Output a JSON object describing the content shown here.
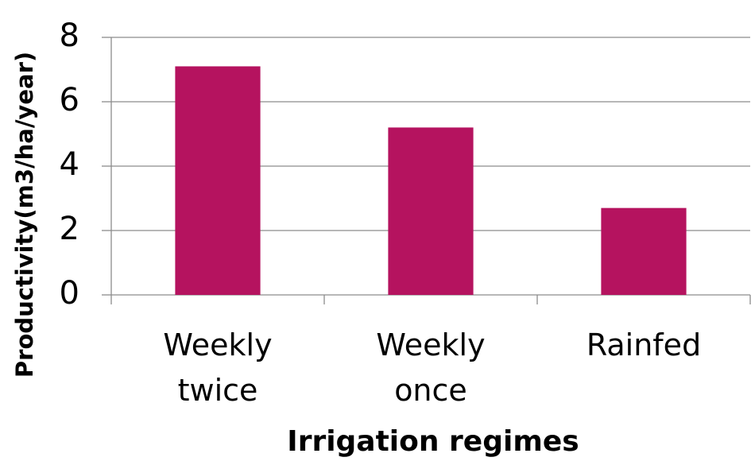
{
  "chart_data": {
    "type": "bar",
    "x_label": "Irrigation regimes",
    "y_label": "Productivity(m3/ha/year)",
    "categories": [
      "Weekly twice",
      "Weekly once",
      "Rainfed"
    ],
    "values": [
      7.1,
      5.2,
      2.7
    ],
    "color": "#b5135f",
    "ylim": [
      0,
      8
    ],
    "yticks": [
      0,
      2,
      4,
      6,
      8
    ],
    "grid": true
  }
}
